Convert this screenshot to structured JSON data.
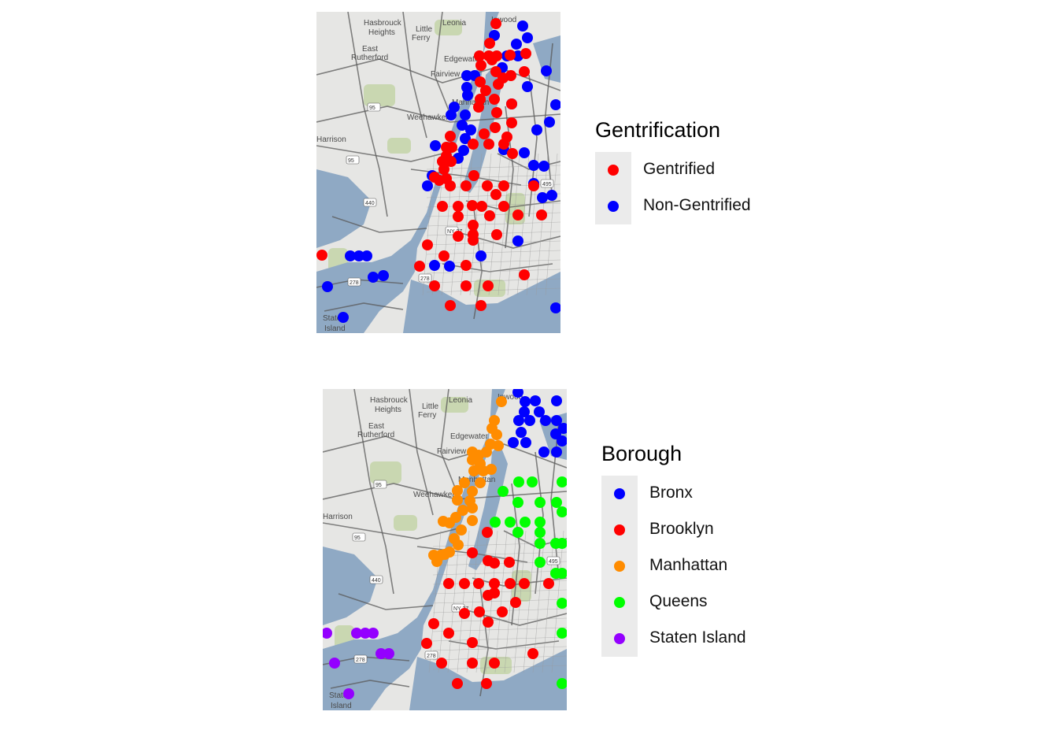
{
  "panels": [
    {
      "id": "gentrification",
      "legend_title": "Gentrification",
      "legend": [
        {
          "label": "Gentrified",
          "color": "#ff0000"
        },
        {
          "label": "Non-Gentrified",
          "color": "#0000ff"
        }
      ]
    },
    {
      "id": "borough",
      "legend_title": "Borough",
      "legend": [
        {
          "label": "Bronx",
          "color": "#0000ff"
        },
        {
          "label": "Brooklyn",
          "color": "#ff0000"
        },
        {
          "label": "Manhattan",
          "color": "#ff8c00"
        },
        {
          "label": "Queens",
          "color": "#00ff00"
        },
        {
          "label": "Staten Island",
          "color": "#9400ff"
        }
      ]
    }
  ],
  "map_labels": [
    "Hasbrouck",
    "Heights",
    "Little",
    "Ferry",
    "Leonia",
    "Inwood",
    "East",
    "Rutherford",
    "Edgewater",
    "Fairview",
    "Manhattan",
    "Weehawken",
    "Harrison",
    "Staten",
    "Island",
    "95",
    "495",
    "440",
    "NY 27",
    "278"
  ],
  "colors": {
    "water": "#8fa9c4",
    "land": "#e6e6e4",
    "park": "#c2d3a4",
    "roads": "#5a5a5a"
  }
}
